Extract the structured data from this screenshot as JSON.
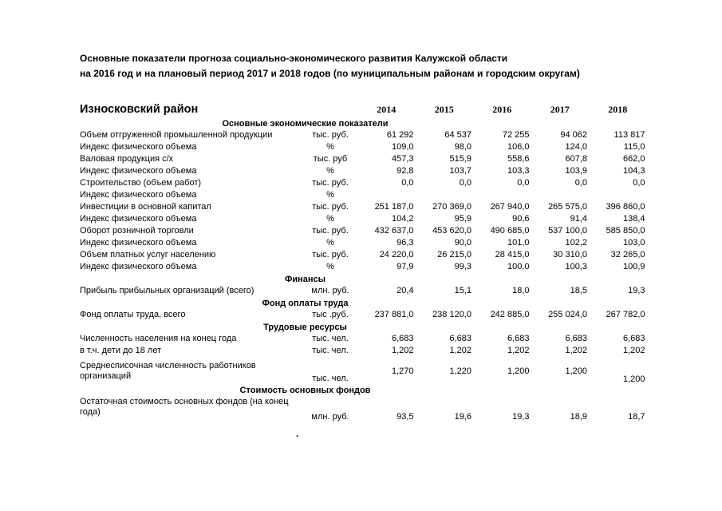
{
  "title": {
    "line1": "Основные показатели прогноза социально-экономического развития Калужской области",
    "line2": "на 2016 год и на плановый период  2017 и 2018 годов (по муниципальным районам и городским округам)"
  },
  "stray_mark": ".",
  "table": {
    "district": "Износковский район",
    "years": [
      "2014",
      "2015",
      "2016",
      "2017",
      "2018"
    ],
    "rows": [
      {
        "type": "section",
        "label": "Основные экономические показатели"
      },
      {
        "type": "data",
        "variant": "",
        "label": "Объем отгруженной промышленной продукции",
        "unit": "тыс. руб.",
        "values": [
          "61 292",
          "64 537",
          "72 255",
          "94 062",
          "113 817"
        ]
      },
      {
        "type": "data",
        "variant": "",
        "label": "Индекс физического объема",
        "unit": "%",
        "values": [
          "109,0",
          "98,0",
          "106,0",
          "124,0",
          "115,0"
        ]
      },
      {
        "type": "data",
        "variant": "",
        "label": "Валовая продукция с/х",
        "unit": "тыс. руб",
        "values": [
          "457,3",
          "515,9",
          "558,6",
          "607,8",
          "662,0"
        ]
      },
      {
        "type": "data",
        "variant": "",
        "label": "Индекс физического объема",
        "unit": "%",
        "values": [
          "92,8",
          "103,7",
          "103,3",
          "103,9",
          "104,3"
        ]
      },
      {
        "type": "data",
        "variant": "",
        "label": "Строительство (объем работ)",
        "unit": "тыс. руб.",
        "values": [
          "0,0",
          "0,0",
          "0,0",
          "0,0",
          "0,0"
        ]
      },
      {
        "type": "data",
        "variant": "",
        "label": "Индекс физического объема",
        "unit": "%",
        "values": [
          "",
          "",
          "",
          "",
          ""
        ]
      },
      {
        "type": "data",
        "variant": "",
        "label": "Инвестиции в основной капитал",
        "unit": "тыс. руб.",
        "values": [
          "251 187,0",
          "270 369,0",
          "267 940,0",
          "265 575,0",
          "396 860,0"
        ]
      },
      {
        "type": "data",
        "variant": "",
        "label": "Индекс физического объема",
        "unit": "%",
        "values": [
          "104,2",
          "95,9",
          "90,6",
          "91,4",
          "138,4"
        ]
      },
      {
        "type": "data",
        "variant": "",
        "label": "Оборот розничной торговли",
        "unit": "тыс. руб.",
        "values": [
          "432 637,0",
          "453 620,0",
          "490 685,0",
          "537 100,0",
          "585 850,0"
        ]
      },
      {
        "type": "data",
        "variant": "",
        "label": "Индекс физического объема",
        "unit": "%",
        "values": [
          "96,3",
          "90,0",
          "101,0",
          "102,2",
          "103,0"
        ]
      },
      {
        "type": "data",
        "variant": "",
        "label": "Объем платных услуг населению",
        "unit": "тыс. руб.",
        "values": [
          "24 220,0",
          "26 215,0",
          "28 415,0",
          "30 310,0",
          "32 265,0"
        ]
      },
      {
        "type": "data",
        "variant": "",
        "label": "Индекс физического объема",
        "unit": "%",
        "values": [
          "97,9",
          "99,3",
          "100,0",
          "100,3",
          "100,9"
        ]
      },
      {
        "type": "section",
        "label": "Финансы"
      },
      {
        "type": "data",
        "variant": "",
        "label": "Прибыль прибыльных организаций (всего)",
        "unit": "млн. руб.",
        "values": [
          "20,4",
          "15,1",
          "18,0",
          "18,5",
          "19,3"
        ]
      },
      {
        "type": "section",
        "label": "Фонд оплаты труда"
      },
      {
        "type": "data",
        "variant": "",
        "label": "Фонд оплаты труда, всего",
        "unit": "тыс .руб.",
        "values": [
          "237 881,0",
          "238 120,0",
          "242 885,0",
          "255 024,0",
          "267 782,0"
        ]
      },
      {
        "type": "section",
        "label": "Трудовые ресурсы"
      },
      {
        "type": "data",
        "variant": "",
        "label": "Численность населения на конец года",
        "unit": "тыс. чел.",
        "values": [
          "6,683",
          "6,683",
          "6,683",
          "6,683",
          "6,683"
        ]
      },
      {
        "type": "data",
        "variant": "",
        "label": "в т.ч. дети до 18 лет",
        "unit": "тыс. чел.",
        "values": [
          "1,202",
          "1,202",
          "1,202",
          "1,202",
          "1,202"
        ]
      },
      {
        "type": "data",
        "variant": "split",
        "label": "Среднесписочная численность работников организаций",
        "unit": "тыс. чел.",
        "values": [
          "1,270",
          "1,220",
          "1,200",
          "1,200",
          "1,200"
        ]
      },
      {
        "type": "section",
        "label": "Стоимость основных фондов"
      },
      {
        "type": "data",
        "variant": "bottom",
        "label": "Остаточная стоимость основных фондов (на конец года)",
        "unit": "млн. руб.",
        "values": [
          "93,5",
          "19,6",
          "19,3",
          "18,9",
          "18,7"
        ]
      }
    ]
  }
}
